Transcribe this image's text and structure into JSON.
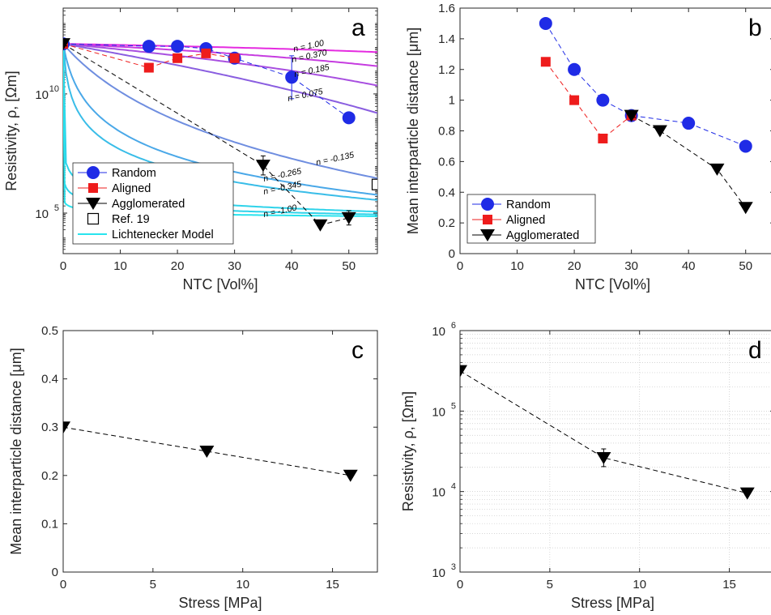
{
  "colors": {
    "random": "#1f2be6",
    "aligned": "#ee1c1c",
    "agglomerated": "#000000",
    "lichtenecker": [
      "#e52be0",
      "#c63ce0",
      "#a84fe0",
      "#8a5ee0",
      "#6f8ee0",
      "#4aa8e8",
      "#39bde8",
      "#2ed3ea",
      "#28e4ee"
    ]
  },
  "chart_data": [
    {
      "id": "a",
      "type": "line",
      "letter": "a",
      "xlabel": "NTC [Vol%]",
      "ylabel": "Resistivity, ρ, [Ωm]",
      "xlim": [
        0,
        55
      ],
      "xticks": [
        0,
        10,
        20,
        30,
        40,
        50
      ],
      "ylog": true,
      "ylim_log10": [
        3.3,
        13.6
      ],
      "yticks": [
        {
          "exp": 5,
          "label": "10"
        },
        {
          "exp": 10,
          "label": "10"
        }
      ],
      "legend": [
        "Random",
        "Aligned",
        "Agglomerated",
        "Ref. 19",
        "Lichtenecker Model"
      ],
      "lichtenecker_n": [
        1.0,
        0.37,
        0.185,
        0.075,
        -0.135,
        -0.265,
        -0.345,
        -1.0
      ],
      "lichtenecker_labels": [
        "n = 1.00",
        "n = 0.370",
        "n = 0.185",
        "n = 0.075",
        "n = -0.135",
        "n = -0.265",
        "n = -0.345",
        "n = -1.00"
      ],
      "series": [
        {
          "name": "Random",
          "x": [
            0,
            15,
            20,
            25,
            30,
            40,
            50
          ],
          "log10y": [
            12.1,
            12.0,
            12.0,
            11.9,
            11.5,
            10.7,
            9.0
          ],
          "err_log10": [
            0,
            0,
            0,
            0,
            0,
            0.9,
            0
          ]
        },
        {
          "name": "Aligned",
          "x": [
            0,
            15,
            20,
            25,
            30
          ],
          "log10y": [
            12.1,
            11.1,
            11.5,
            11.7,
            11.5
          ]
        },
        {
          "name": "Agglomerated",
          "x": [
            0,
            35,
            45,
            50
          ],
          "log10y": [
            12.1,
            7.0,
            4.5,
            4.8
          ],
          "err_log10": [
            0,
            0.4,
            0,
            0.3
          ]
        },
        {
          "name": "Ref. 19",
          "x": [
            55
          ],
          "log10y": [
            6.2
          ]
        }
      ]
    },
    {
      "id": "b",
      "type": "line",
      "letter": "b",
      "xlabel": "NTC [Vol%]",
      "ylabel": "Mean interparticle distance [μm]",
      "xlim": [
        0,
        55
      ],
      "xticks": [
        0,
        10,
        20,
        30,
        40,
        50
      ],
      "ylim": [
        0,
        1.6
      ],
      "yticks": [
        0,
        0.2,
        0.4,
        0.6,
        0.8,
        1,
        1.2,
        1.4,
        1.6
      ],
      "legend": [
        "Random",
        "Aligned",
        "Agglomerated"
      ],
      "series": [
        {
          "name": "Random",
          "x": [
            15,
            20,
            25,
            30,
            40,
            50
          ],
          "y": [
            1.5,
            1.2,
            1.0,
            0.9,
            0.85,
            0.7
          ]
        },
        {
          "name": "Aligned",
          "x": [
            15,
            20,
            25,
            30
          ],
          "y": [
            1.25,
            1.0,
            0.75,
            0.9
          ]
        },
        {
          "name": "Agglomerated",
          "x": [
            30,
            35,
            45,
            50
          ],
          "y": [
            0.9,
            0.8,
            0.55,
            0.3
          ]
        }
      ]
    },
    {
      "id": "c",
      "type": "line",
      "letter": "c",
      "xlabel": "Stress [MPa]",
      "ylabel": "Mean interparticle distance [μm]",
      "xlim": [
        0,
        17.5
      ],
      "xticks": [
        0,
        5,
        10,
        15
      ],
      "ylim": [
        0,
        0.5
      ],
      "yticks": [
        0,
        0.1,
        0.2,
        0.3,
        0.4,
        0.5
      ],
      "series": [
        {
          "name": "Agglomerated",
          "x": [
            0,
            8,
            16
          ],
          "y": [
            0.3,
            0.25,
            0.2
          ]
        }
      ]
    },
    {
      "id": "d",
      "type": "line",
      "letter": "d",
      "xlabel": "Stress [MPa]",
      "ylabel": "Resistivity, ρ, [Ωm]",
      "xlim": [
        0,
        17.5
      ],
      "xticks": [
        0,
        5,
        10,
        15
      ],
      "ylog": true,
      "ylim_log10": [
        3,
        6
      ],
      "yticks": [
        {
          "exp": 3,
          "label": "10"
        },
        {
          "exp": 4,
          "label": "10"
        },
        {
          "exp": 5,
          "label": "10"
        },
        {
          "exp": 6,
          "label": "10"
        }
      ],
      "grid": true,
      "series": [
        {
          "name": "Agglomerated",
          "x": [
            0,
            8,
            16
          ],
          "log10y": [
            5.5,
            4.42,
            3.98
          ],
          "err_log10": [
            0,
            0.11,
            0
          ]
        }
      ]
    }
  ]
}
